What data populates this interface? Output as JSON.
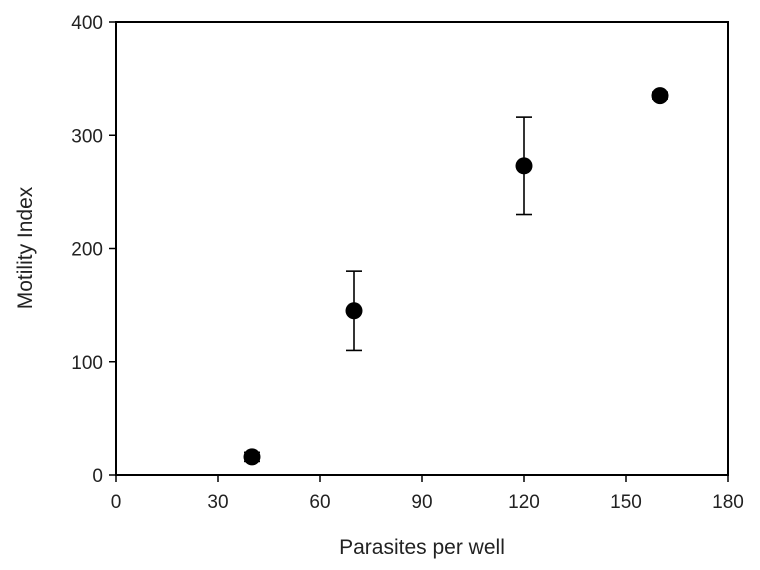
{
  "chart_data": {
    "type": "scatter",
    "title": "",
    "xlabel": "Parasites per well",
    "ylabel": "Motility Index",
    "xlim": [
      0,
      180
    ],
    "ylim": [
      0,
      400
    ],
    "xticks": [
      0,
      30,
      60,
      90,
      120,
      150,
      180
    ],
    "yticks": [
      0,
      100,
      200,
      300,
      400
    ],
    "grid": false,
    "series": [
      {
        "points": [
          {
            "x": 40,
            "y": 16,
            "err_low": 12,
            "err_high": 20
          },
          {
            "x": 70,
            "y": 145,
            "err_low": 110,
            "err_high": 180
          },
          {
            "x": 120,
            "y": 273,
            "err_low": 230,
            "err_high": 316
          },
          {
            "x": 160,
            "y": 335,
            "err_low": 332,
            "err_high": 338
          }
        ],
        "marker_color": "#000000"
      }
    ]
  }
}
